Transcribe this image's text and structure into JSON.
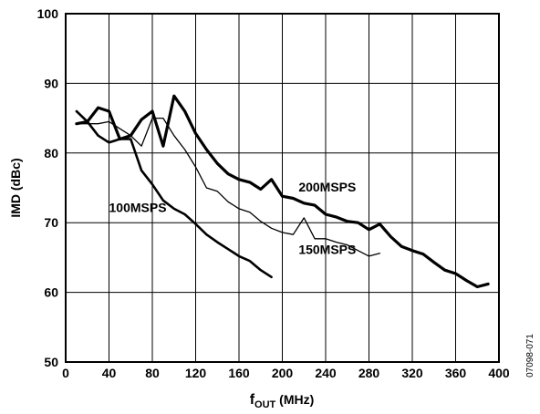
{
  "chart_data": {
    "type": "line",
    "title": "",
    "xlabel": "f",
    "xlabel_sub": "OUT",
    "xlabel_unit": " (MHz)",
    "ylabel": "IMD (dBc)",
    "xlim": [
      0,
      400
    ],
    "ylim": [
      50,
      100
    ],
    "x_ticks": [
      0,
      40,
      80,
      120,
      160,
      200,
      240,
      280,
      320,
      360,
      400
    ],
    "y_ticks": [
      50,
      60,
      70,
      80,
      90,
      100
    ],
    "grid": true,
    "figure_code": "07098-071",
    "series": [
      {
        "name": "100MSPS",
        "label_pos": [
          40,
          71.5
        ],
        "x": [
          10,
          20,
          30,
          40,
          50,
          60,
          70,
          80,
          90,
          100,
          110,
          120,
          130,
          140,
          150,
          160,
          170,
          180,
          190
        ],
        "y": [
          86,
          84.5,
          82.5,
          81.5,
          82,
          82,
          77.5,
          75.5,
          73.2,
          72,
          71.2,
          69.8,
          68.3,
          67.2,
          66.2,
          65.2,
          64.5,
          63.2,
          62.2
        ]
      },
      {
        "name": "150MSPS",
        "label_pos": [
          215,
          65.5
        ],
        "x": [
          10,
          20,
          30,
          40,
          50,
          60,
          70,
          80,
          90,
          100,
          110,
          120,
          130,
          140,
          150,
          160,
          170,
          180,
          190,
          200,
          210,
          220,
          230,
          240,
          250,
          260,
          270,
          280,
          290
        ],
        "y": [
          84.2,
          84.2,
          84.2,
          84.5,
          83.5,
          82.5,
          81,
          85,
          85,
          82.5,
          80.5,
          78,
          75,
          74.5,
          73,
          72,
          71.5,
          70.2,
          69.2,
          68.6,
          68.3,
          70.7,
          67.7,
          67.7,
          67.2,
          66.8,
          66,
          65.2,
          65.6
        ]
      },
      {
        "name": "200MSPS",
        "label_pos": [
          215,
          74.5
        ],
        "x": [
          10,
          20,
          30,
          40,
          50,
          60,
          70,
          80,
          90,
          100,
          110,
          120,
          130,
          140,
          150,
          160,
          170,
          180,
          190,
          200,
          210,
          220,
          230,
          240,
          250,
          260,
          270,
          280,
          290,
          300,
          310,
          320,
          330,
          340,
          350,
          360,
          370,
          380,
          390
        ],
        "y": [
          84.2,
          84.5,
          86.5,
          86,
          82,
          82.5,
          84.8,
          86,
          81,
          88.2,
          86,
          82.8,
          80.5,
          78.5,
          77,
          76.2,
          75.8,
          74.8,
          76.2,
          73.8,
          73.5,
          72.8,
          72.5,
          71.2,
          70.8,
          70.2,
          70,
          69,
          69.8,
          68,
          66.6,
          66,
          65.5,
          64.3,
          63.2,
          62.7,
          61.7,
          60.8,
          61.2
        ]
      }
    ],
    "series_stroke": [
      "#000000",
      "#000000",
      "#000000"
    ],
    "series_width": [
      2.6,
      1.3,
      3.2
    ]
  }
}
